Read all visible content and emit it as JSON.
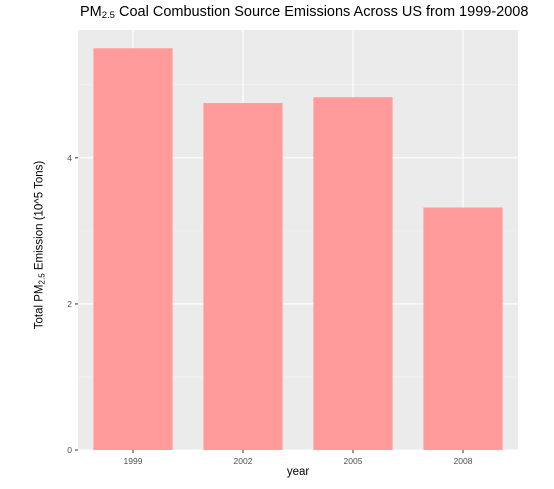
{
  "chart_data": {
    "type": "bar",
    "title_main": "PM",
    "title_sub": "2.5",
    "title_rest": " Coal Combustion Source Emissions Across US from 1999-2008",
    "ylabel_main": "Total PM",
    "ylabel_sub": "2.5",
    "ylabel_rest": " Emission (10^5 Tons)",
    "xlabel": "year",
    "categories": [
      "1999",
      "2002",
      "2005",
      "2008"
    ],
    "values": [
      5.5,
      4.75,
      4.83,
      3.32
    ],
    "ylim": [
      0,
      5.75
    ],
    "yticks": [
      0,
      2,
      4
    ],
    "ytick_labels": [
      "0",
      "2",
      "4"
    ],
    "grid": true,
    "legend": "none",
    "colors": {
      "bar": "#ff9b9b",
      "panel": "#ebebeb",
      "grid_major": "#ffffff",
      "tick_text": "#4d4d4d",
      "tick_mark": "#333333"
    }
  }
}
